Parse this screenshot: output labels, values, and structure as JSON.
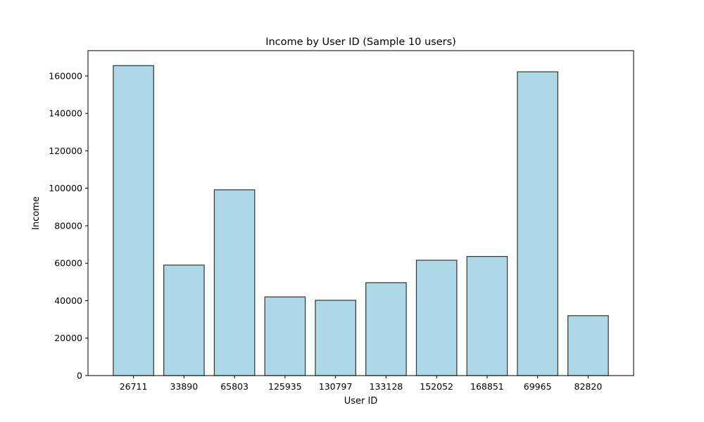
{
  "chart_data": {
    "type": "bar",
    "title": "Income by User ID (Sample 10 users)",
    "xlabel": "User ID",
    "ylabel": "Income",
    "categories": [
      "26711",
      "33890",
      "65803",
      "125935",
      "130797",
      "133128",
      "152052",
      "168851",
      "69965",
      "82820"
    ],
    "values": [
      165500,
      59000,
      99200,
      42000,
      40200,
      49600,
      61600,
      63600,
      162200,
      32000
    ],
    "ylim": [
      0,
      173500
    ],
    "yticks": [
      0,
      20000,
      40000,
      60000,
      80000,
      100000,
      120000,
      140000,
      160000
    ],
    "ytick_labels": [
      "0",
      "20000",
      "40000",
      "60000",
      "80000",
      "100000",
      "120000",
      "140000",
      "160000"
    ],
    "grid": false,
    "bar_color": "#ADD8E6",
    "bar_edge_color": "#333333"
  }
}
